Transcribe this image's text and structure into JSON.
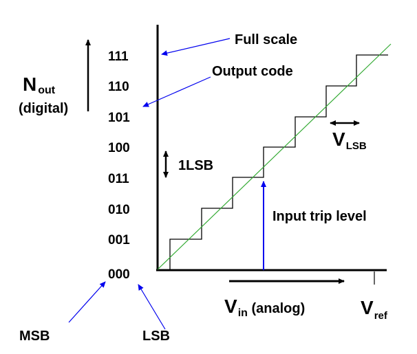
{
  "y_codes": [
    "000",
    "001",
    "010",
    "011",
    "100",
    "101",
    "110",
    "111"
  ],
  "y_axis": {
    "main": "N",
    "subscript": "out",
    "note": "(digital)"
  },
  "x_axis": {
    "main": "V",
    "subscript": "in",
    "note": " (analog)",
    "end_main": "V",
    "end_subscript": "ref"
  },
  "annotations": {
    "full_scale": "Full scale",
    "output_code": "Output code",
    "one_lsb": "1LSB",
    "vlsb_main": "V",
    "vlsb_subscript": "LSB",
    "input_trip_level": "Input trip level",
    "msb": "MSB",
    "lsb": "LSB"
  },
  "colors": {
    "axis": "#000000",
    "staircase": "#000000",
    "ideal_line": "#33aa33",
    "pointer": "#0000ee"
  }
}
